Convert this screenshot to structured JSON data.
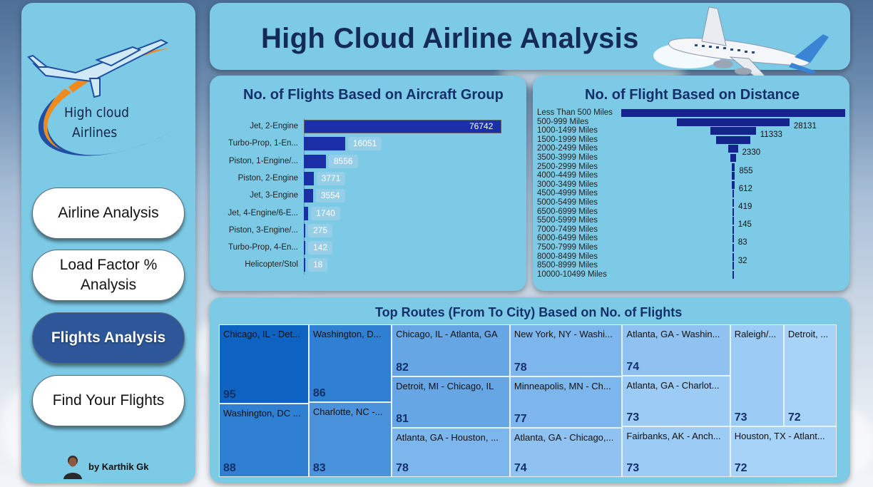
{
  "sidebar": {
    "logo_text_line1": "High cloud",
    "logo_text_line2": "Airlines",
    "nav": [
      {
        "label": "Airline Analysis",
        "active": false
      },
      {
        "label": "Load Factor % Analysis",
        "active": false
      },
      {
        "label": "Flights Analysis",
        "active": true
      },
      {
        "label": "Find Your Flights",
        "active": false
      }
    ],
    "author": "by Karthik Gk"
  },
  "header": {
    "title": "High Cloud Airline Analysis"
  },
  "colors": {
    "panel": "#7ccae5",
    "bar": "#1a2fa8",
    "active_nav": "#2e5799",
    "title": "#142b57"
  },
  "chart_data": [
    {
      "type": "bar",
      "orientation": "horizontal",
      "title": "No. of Flights Based on Aircraft Group",
      "categories": [
        "Jet, 2-Engine",
        "Turbo-Prop, 1-En...",
        "Piston, 1-Engine/...",
        "Piston, 2-Engine",
        "Jet, 3-Engine",
        "Jet, 4-Engine/6-E...",
        "Piston, 3-Engine/...",
        "Turbo-Prop, 4-En...",
        "Helicopter/Stol"
      ],
      "values": [
        76742,
        16051,
        8556,
        3771,
        3554,
        1740,
        275,
        142,
        18
      ],
      "xlim": [
        0,
        76742
      ]
    },
    {
      "type": "bar",
      "orientation": "funnel",
      "title": "No. of Flight Based on Distance",
      "categories": [
        "Less Than 500 Miles",
        "500-999 Miles",
        "1000-1499 Miles",
        "1500-1999 Miles",
        "2000-2499 Miles",
        "3500-3999 Miles",
        "2500-2999 Miles",
        "4000-4499 Miles",
        "3000-3499 Miles",
        "4500-4999 Miles",
        "5000-5499 Miles",
        "6500-6999 Miles",
        "5500-5999 Miles",
        "7000-7499 Miles",
        "6000-6499 Miles",
        "7500-7999 Miles",
        "8000-8499 Miles",
        "8500-8999 Miles",
        "10000-10499 Miles"
      ],
      "values": [
        56000,
        28131,
        11333,
        8400,
        2330,
        1300,
        855,
        740,
        612,
        500,
        419,
        260,
        145,
        110,
        83,
        50,
        32,
        12,
        5
      ],
      "labels": [
        "",
        "28131",
        "11333",
        "",
        "2330",
        "",
        "855",
        "",
        "612",
        "",
        "419",
        "",
        "145",
        "",
        "83",
        "",
        "32",
        "",
        ""
      ]
    },
    {
      "type": "treemap",
      "title": "Top Routes (From To City) Based on No. of Flights",
      "items": [
        {
          "label": "Chicago, IL - Det...",
          "value": 95
        },
        {
          "label": "Washington, DC ...",
          "value": 88
        },
        {
          "label": "Washington, D...",
          "value": 86
        },
        {
          "label": "Charlotte, NC -...",
          "value": 83
        },
        {
          "label": "Chicago, IL - Atlanta, GA",
          "value": 82
        },
        {
          "label": "Detroit, MI - Chicago, IL",
          "value": 81
        },
        {
          "label": "Atlanta, GA - Houston, ...",
          "value": 78
        },
        {
          "label": "New York, NY - Washi...",
          "value": 78
        },
        {
          "label": "Minneapolis, MN - Ch...",
          "value": 77
        },
        {
          "label": "Atlanta, GA - Chicago,...",
          "value": 74
        },
        {
          "label": "Atlanta, GA - Washin...",
          "value": 74
        },
        {
          "label": "Atlanta, GA - Charlot...",
          "value": 73
        },
        {
          "label": "Fairbanks, AK - Anch...",
          "value": 73
        },
        {
          "label": "Raleigh/...",
          "value": 73
        },
        {
          "label": "Detroit, ...",
          "value": 72
        },
        {
          "label": "Houston, TX - Atlant...",
          "value": 72
        }
      ]
    }
  ]
}
